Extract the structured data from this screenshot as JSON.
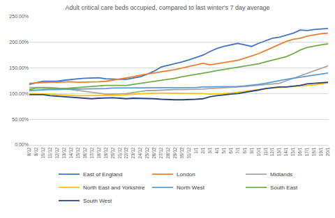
{
  "chart_data": {
    "type": "line",
    "title": "Adult critical care beds occupied, compared to last winter's 7 day average",
    "categories": [
      "8/12",
      "9/12",
      "10/12",
      "11/12",
      "12/12",
      "13/12",
      "14/12",
      "15/12",
      "16/12",
      "17/12",
      "18/12",
      "19/12",
      "20/12",
      "21/12",
      "22/12",
      "23/12",
      "24/12",
      "25/12",
      "26/12",
      "27/12",
      "28/12",
      "29/12",
      "30/12",
      "31/12",
      "1/1",
      "2/1",
      "3/1",
      "4/1",
      "5/1",
      "6/1",
      "7/1",
      "8/1",
      "9/1",
      "10/1",
      "11/1",
      "12/1",
      "13/1",
      "14/1",
      "15/1",
      "16/1",
      "17/1",
      "18/1",
      "19/1",
      "20/1"
    ],
    "series": [
      {
        "name": "East of England",
        "color": "#4472C4",
        "values": [
          118,
          121,
          124,
          124,
          124,
          126,
          128,
          129,
          130,
          130,
          131,
          129,
          128,
          128,
          128,
          130,
          133,
          138,
          144,
          152,
          155,
          159,
          162,
          166,
          170,
          175,
          182,
          188,
          192,
          195,
          198,
          195,
          192,
          198,
          203,
          208,
          210,
          214,
          218,
          224,
          223,
          225,
          226,
          227
        ]
      },
      {
        "name": "London",
        "color": "#ED7D31",
        "values": [
          120,
          121,
          122,
          122,
          122,
          123,
          123,
          122,
          122,
          122,
          123,
          124,
          126,
          128,
          130,
          133,
          136,
          138,
          140,
          142,
          145,
          147,
          150,
          153,
          157,
          159,
          156,
          158,
          161,
          163,
          165,
          169,
          173,
          178,
          184,
          190,
          196,
          202,
          206,
          208,
          212,
          215,
          217,
          218
        ]
      },
      {
        "name": "Midlands",
        "color": "#A5A5A5",
        "values": [
          112,
          112,
          113,
          112,
          111,
          110,
          108,
          106,
          104,
          102,
          100,
          99,
          99,
          99,
          100,
          102,
          104,
          106,
          106,
          107,
          107,
          108,
          108,
          108,
          108,
          109,
          110,
          111,
          112,
          113,
          113,
          114,
          115,
          116,
          117,
          118,
          120,
          125,
          130,
          135,
          140,
          145,
          150,
          154
        ]
      },
      {
        "name": "North East and Yorkshire",
        "color": "#FFC000",
        "values": [
          100,
          100,
          99,
          99,
          98,
          97,
          97,
          96,
          96,
          96,
          96,
          96,
          97,
          97,
          98,
          99,
          100,
          101,
          101,
          101,
          101,
          101,
          101,
          100,
          100,
          100,
          99,
          99,
          100,
          101,
          102,
          104,
          106,
          108,
          110,
          111,
          112,
          113,
          114,
          114,
          116,
          117,
          119,
          121
        ]
      },
      {
        "name": "North West",
        "color": "#5B9BD5",
        "values": [
          106,
          107,
          107,
          108,
          108,
          109,
          109,
          109,
          109,
          110,
          110,
          110,
          111,
          111,
          111,
          112,
          112,
          112,
          112,
          112,
          112,
          112,
          112,
          112,
          112,
          113,
          113,
          113,
          113,
          114,
          114,
          115,
          116,
          118,
          120,
          123,
          126,
          128,
          130,
          132,
          134,
          136,
          139,
          140
        ]
      },
      {
        "name": "South East",
        "color": "#70AD47",
        "values": [
          108,
          111,
          111,
          110,
          110,
          110,
          111,
          112,
          113,
          113,
          115,
          116,
          116,
          116,
          116,
          118,
          120,
          122,
          124,
          125,
          128,
          130,
          133,
          135,
          137,
          140,
          142,
          145,
          147,
          149,
          151,
          153,
          155,
          158,
          162,
          165,
          168,
          172,
          178,
          185,
          190,
          193,
          195,
          197
        ]
      },
      {
        "name": "South West",
        "color": "#264478",
        "values": [
          98,
          98,
          98,
          96,
          95,
          93,
          92,
          91,
          91,
          90,
          91,
          92,
          92,
          91,
          90,
          91,
          91,
          90,
          90,
          89,
          88,
          88,
          88,
          88,
          89,
          90,
          94,
          96,
          98,
          99,
          100,
          102,
          105,
          107,
          110,
          112,
          113,
          113,
          114,
          116,
          119,
          120,
          121,
          122
        ]
      }
    ],
    "ylim": [
      0,
      250
    ],
    "yticks": [
      {
        "value": 0,
        "label": "0.00%"
      },
      {
        "value": 50,
        "label": "50.00%"
      },
      {
        "value": 100,
        "label": "100.00%"
      },
      {
        "value": 150,
        "label": "150.00%"
      },
      {
        "value": 200,
        "label": "200.00%"
      },
      {
        "value": 250,
        "label": "250.00%"
      }
    ],
    "grid": true,
    "legend": "bottom"
  }
}
